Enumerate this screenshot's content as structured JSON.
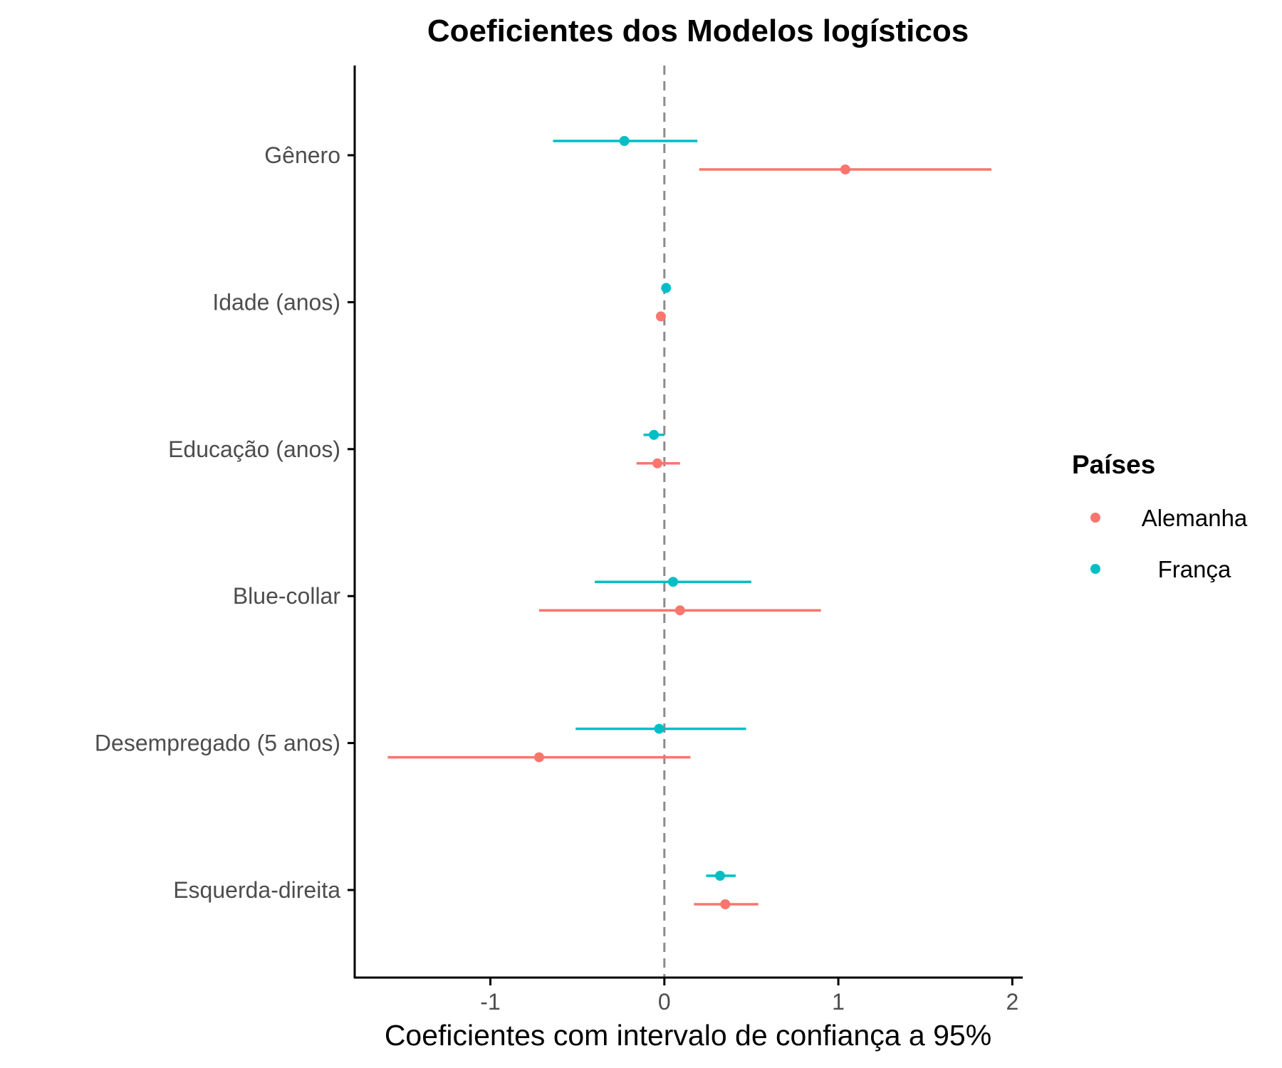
{
  "chart_data": {
    "type": "coefficient-plot",
    "title": "Coeficientes dos Modelos logísticos",
    "xlabel": "Coeficientes com intervalo de confiança a 95%",
    "ylabel": "",
    "xlim": [
      -1.78,
      2.06
    ],
    "x_ticks": [
      -1,
      0,
      1,
      2
    ],
    "x_tick_labels": [
      "-1",
      "0",
      "1",
      "2"
    ],
    "reference_line": 0,
    "grid": false,
    "legend": {
      "title": "Países",
      "position": "right"
    },
    "categories": [
      "Gênero",
      "Idade (anos)",
      "Educação (anos)",
      "Blue-collar",
      "Desempregado (5 anos)",
      "Esquerda-direita"
    ],
    "series": [
      {
        "name": "Alemanha",
        "color": "#F8766D",
        "estimates": [
          1.04,
          -0.02,
          -0.04,
          0.09,
          -0.72,
          0.35
        ],
        "lower": [
          0.2,
          -0.02,
          -0.16,
          -0.72,
          -1.59,
          0.17
        ],
        "upper": [
          1.88,
          -0.02,
          0.09,
          0.9,
          0.15,
          0.54
        ]
      },
      {
        "name": "França",
        "color": "#00BFC4",
        "estimates": [
          -0.23,
          0.01,
          -0.06,
          0.05,
          -0.03,
          0.32
        ],
        "lower": [
          -0.64,
          0.01,
          -0.12,
          -0.4,
          -0.51,
          0.24
        ],
        "upper": [
          0.19,
          0.01,
          0.0,
          0.5,
          0.47,
          0.41
        ]
      }
    ]
  }
}
